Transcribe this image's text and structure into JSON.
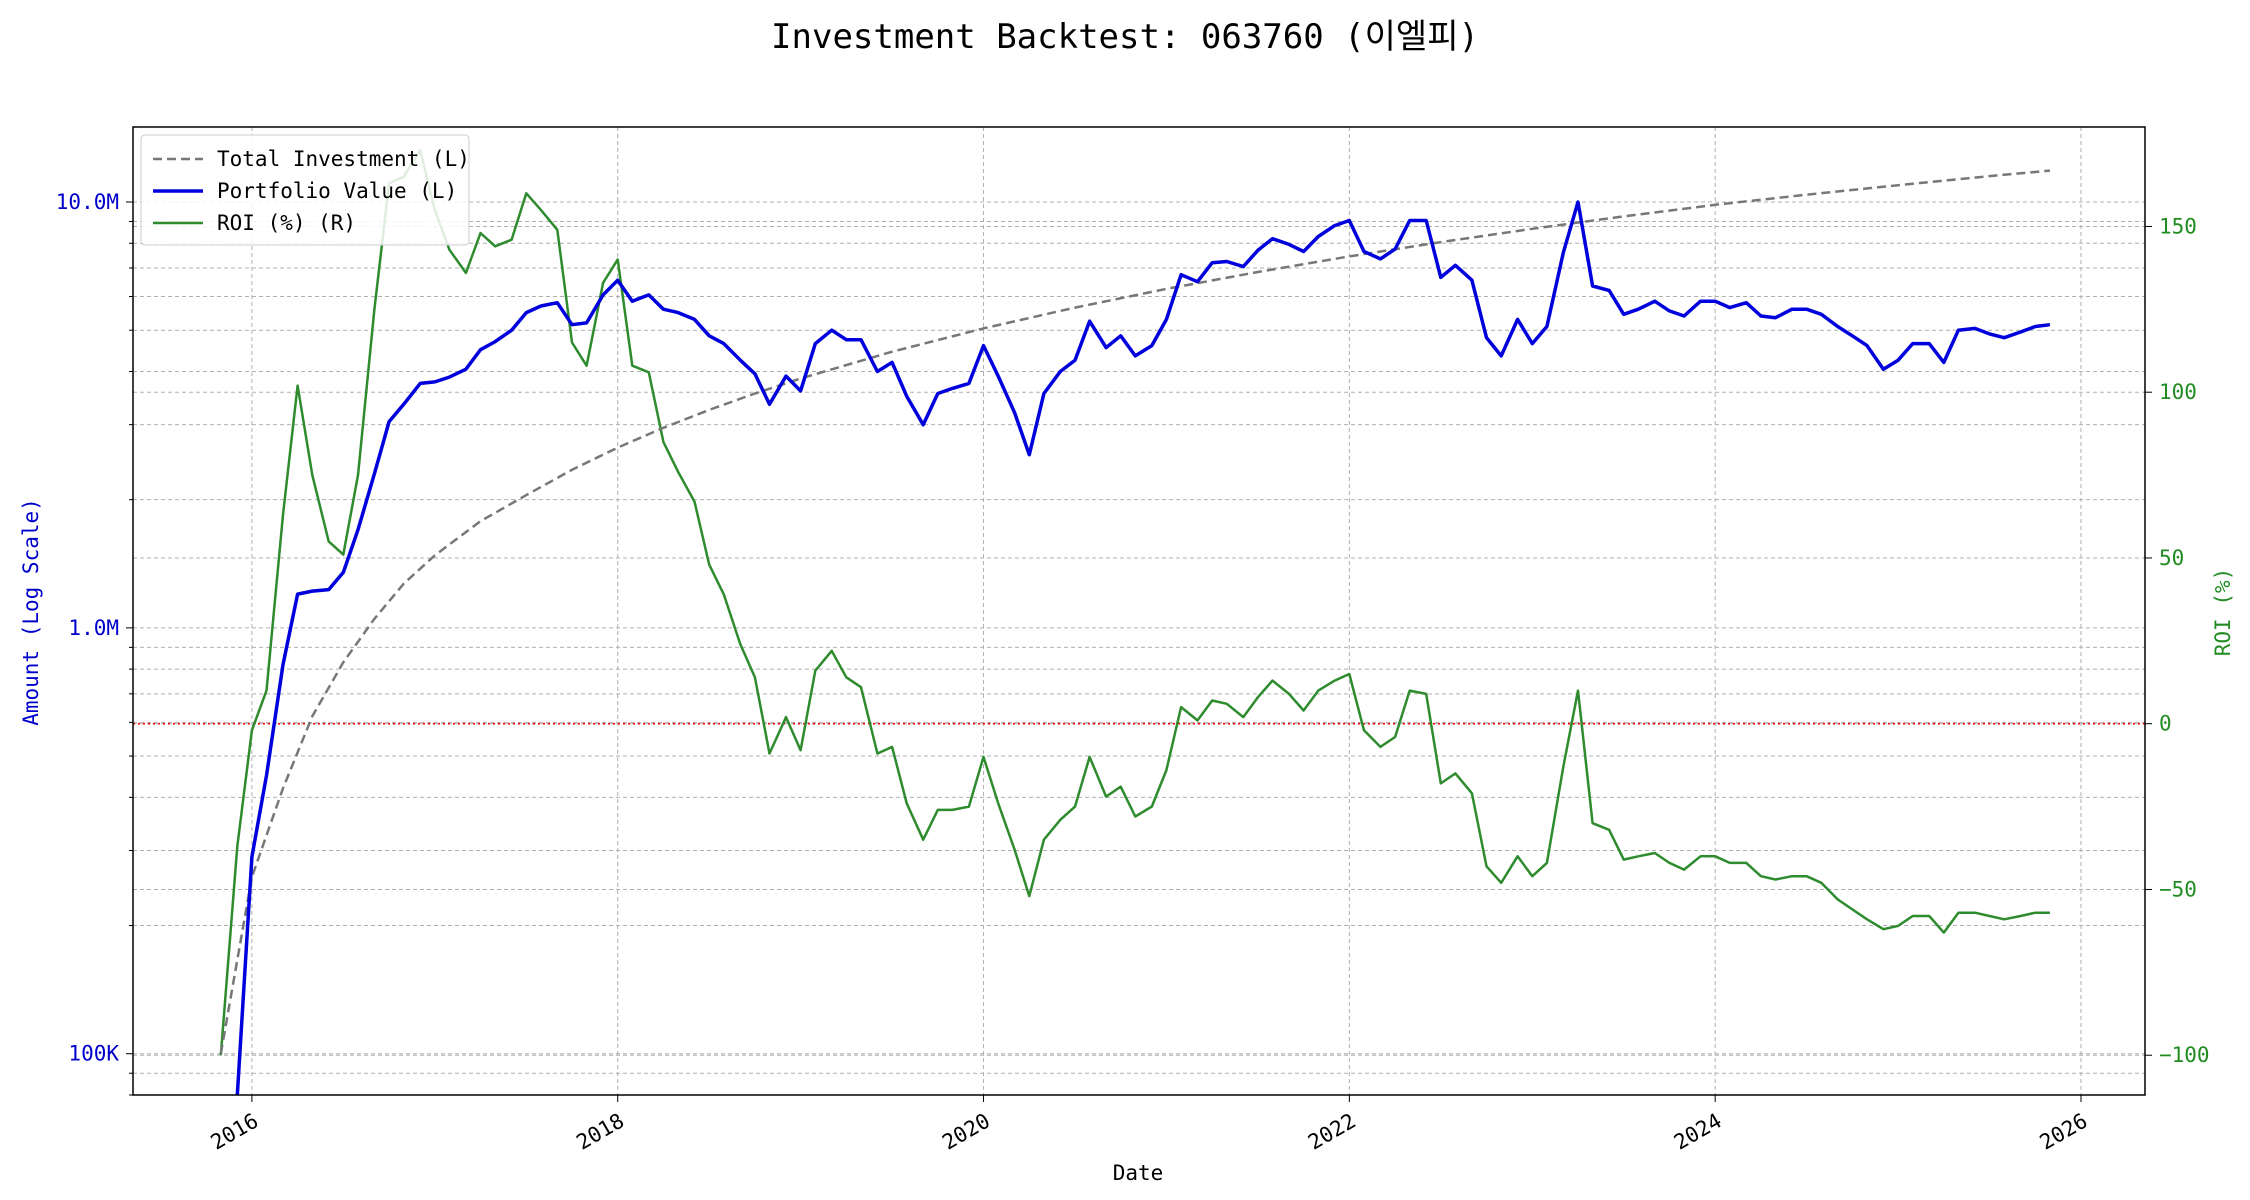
{
  "chart_data": {
    "type": "line",
    "title": "Investment Backtest: 063760 (이엘피)",
    "xlabel": "Date",
    "ylabel_left": "Amount (Log Scale)",
    "ylabel_right": "ROI (%)",
    "x_ticks": [
      "2016",
      "2018",
      "2020",
      "2022",
      "2024",
      "2026"
    ],
    "y_left_scale": "log",
    "y_left_lim": [
      80000,
      15000000
    ],
    "y_left_ticks": [
      {
        "value": 100000,
        "label": "100K"
      },
      {
        "value": 1000000,
        "label": "1.0M"
      },
      {
        "value": 10000000,
        "label": "10.0M"
      }
    ],
    "y_right_lim": [
      -112,
      180
    ],
    "y_right_ticks": [
      {
        "value": -100,
        "label": "−100"
      },
      {
        "value": -50,
        "label": "−50"
      },
      {
        "value": 0,
        "label": "0"
      },
      {
        "value": 50,
        "label": "50"
      },
      {
        "value": 100,
        "label": "100"
      },
      {
        "value": 150,
        "label": "150"
      }
    ],
    "x_lim": [
      2015.35,
      2026.35
    ],
    "grid": true,
    "legend_position": "top-left",
    "reference_line": {
      "axis": "right",
      "value": 0,
      "color": "#ff0000",
      "style": "dotted"
    },
    "colors": {
      "total_investment": "#777777",
      "portfolio": "#0000dd",
      "roi": "#2e8b2e",
      "left_axis": "#0000cc",
      "right_axis": "#228b22"
    },
    "series": [
      {
        "name": "Total Investment (L)",
        "axis": "left",
        "style": "dashed",
        "x": [
          2015.83,
          2016.0,
          2016.17,
          2016.33,
          2016.5,
          2016.67,
          2016.83,
          2017.0,
          2017.25,
          2017.5,
          2017.75,
          2018.0,
          2018.25,
          2018.5,
          2018.75,
          2019.0,
          2019.5,
          2020.0,
          2020.5,
          2021.0,
          2021.5,
          2022.0,
          2022.5,
          2023.0,
          2023.5,
          2024.0,
          2024.5,
          2025.0,
          2025.5,
          2025.83
        ],
        "values": [
          100000,
          260000,
          420000,
          620000,
          830000,
          1050000,
          1270000,
          1480000,
          1780000,
          2050000,
          2350000,
          2650000,
          2950000,
          3250000,
          3550000,
          3850000,
          4450000,
          5050000,
          5650000,
          6250000,
          6850000,
          7450000,
          8050000,
          8650000,
          9250000,
          9850000,
          10400000,
          10950000,
          11500000,
          11850000
        ]
      },
      {
        "name": "Portfolio Value (L)",
        "axis": "left",
        "style": "solid",
        "x": [
          2015.92,
          2016.0,
          2016.08,
          2016.17,
          2016.25,
          2016.33,
          2016.42,
          2016.5,
          2016.58,
          2016.67,
          2016.75,
          2016.83,
          2016.92,
          2017.0,
          2017.08,
          2017.17,
          2017.25,
          2017.33,
          2017.42,
          2017.5,
          2017.58,
          2017.67,
          2017.75,
          2017.83,
          2017.92,
          2018.0,
          2018.08,
          2018.17,
          2018.25,
          2018.33,
          2018.42,
          2018.5,
          2018.58,
          2018.67,
          2018.75,
          2018.83,
          2018.92,
          2019.0,
          2019.08,
          2019.17,
          2019.25,
          2019.33,
          2019.42,
          2019.5,
          2019.58,
          2019.67,
          2019.75,
          2019.83,
          2019.92,
          2020.0,
          2020.08,
          2020.17,
          2020.25,
          2020.33,
          2020.42,
          2020.5,
          2020.58,
          2020.67,
          2020.75,
          2020.83,
          2020.92,
          2021.0,
          2021.08,
          2021.17,
          2021.25,
          2021.33,
          2021.42,
          2021.5,
          2021.58,
          2021.67,
          2021.75,
          2021.83,
          2021.92,
          2022.0,
          2022.08,
          2022.17,
          2022.25,
          2022.33,
          2022.42,
          2022.5,
          2022.58,
          2022.67,
          2022.75,
          2022.83,
          2022.92,
          2023.0,
          2023.08,
          2023.17,
          2023.25,
          2023.33,
          2023.42,
          2023.5,
          2023.58,
          2023.67,
          2023.75,
          2023.83,
          2023.92,
          2024.0,
          2024.08,
          2024.17,
          2024.25,
          2024.33,
          2024.42,
          2024.5,
          2024.58,
          2024.67,
          2024.75,
          2024.83,
          2024.92,
          2025.0,
          2025.08,
          2025.17,
          2025.25,
          2025.33,
          2025.42,
          2025.5,
          2025.58,
          2025.67,
          2025.75,
          2025.83
        ],
        "values": [
          65000,
          290000,
          450000,
          820000,
          1200000,
          1220000,
          1230000,
          1350000,
          1700000,
          2300000,
          3050000,
          3350000,
          3750000,
          3780000,
          3880000,
          4050000,
          4500000,
          4700000,
          5000000,
          5500000,
          5700000,
          5800000,
          5150000,
          5200000,
          6050000,
          6550000,
          5850000,
          6050000,
          5600000,
          5500000,
          5300000,
          4850000,
          4650000,
          4250000,
          3950000,
          3350000,
          3900000,
          3600000,
          4650000,
          5000000,
          4750000,
          4750000,
          4000000,
          4200000,
          3500000,
          3000000,
          3550000,
          3650000,
          3750000,
          4600000,
          3900000,
          3200000,
          2550000,
          3550000,
          4000000,
          4250000,
          5250000,
          4550000,
          4850000,
          4350000,
          4600000,
          5300000,
          6750000,
          6500000,
          7200000,
          7250000,
          7050000,
          7700000,
          8200000,
          7950000,
          7650000,
          8300000,
          8800000,
          9050000,
          7650000,
          7350000,
          7750000,
          9050000,
          9050000,
          6650000,
          7100000,
          6550000,
          4800000,
          4350000,
          5300000,
          4650000,
          5100000,
          7600000,
          10000000,
          6350000,
          6200000,
          5450000,
          5600000,
          5850000,
          5550000,
          5400000,
          5850000,
          5850000,
          5650000,
          5800000,
          5400000,
          5350000,
          5600000,
          5600000,
          5450000,
          5100000,
          4850000,
          4600000,
          4050000,
          4250000,
          4650000,
          4650000,
          4200000,
          5000000,
          5050000,
          4900000,
          4800000,
          4950000,
          5100000,
          5150000
        ]
      },
      {
        "name": "ROI (%) (R)",
        "axis": "right",
        "style": "solid",
        "x": [
          2015.83,
          2015.92,
          2016.0,
          2016.08,
          2016.17,
          2016.25,
          2016.33,
          2016.42,
          2016.5,
          2016.58,
          2016.67,
          2016.75,
          2016.83,
          2016.92,
          2017.0,
          2017.08,
          2017.17,
          2017.25,
          2017.33,
          2017.42,
          2017.5,
          2017.58,
          2017.67,
          2017.75,
          2017.83,
          2017.92,
          2018.0,
          2018.08,
          2018.17,
          2018.25,
          2018.33,
          2018.42,
          2018.5,
          2018.58,
          2018.67,
          2018.75,
          2018.83,
          2018.92,
          2019.0,
          2019.08,
          2019.17,
          2019.25,
          2019.33,
          2019.42,
          2019.5,
          2019.58,
          2019.67,
          2019.75,
          2019.83,
          2019.92,
          2020.0,
          2020.08,
          2020.17,
          2020.25,
          2020.33,
          2020.42,
          2020.5,
          2020.58,
          2020.67,
          2020.75,
          2020.83,
          2020.92,
          2021.0,
          2021.08,
          2021.17,
          2021.25,
          2021.33,
          2021.42,
          2021.5,
          2021.58,
          2021.67,
          2021.75,
          2021.83,
          2021.92,
          2022.0,
          2022.08,
          2022.17,
          2022.25,
          2022.33,
          2022.42,
          2022.5,
          2022.58,
          2022.67,
          2022.75,
          2022.83,
          2022.92,
          2023.0,
          2023.08,
          2023.17,
          2023.25,
          2023.33,
          2023.42,
          2023.5,
          2023.58,
          2023.67,
          2023.75,
          2023.83,
          2023.92,
          2024.0,
          2024.08,
          2024.17,
          2024.25,
          2024.33,
          2024.42,
          2024.5,
          2024.58,
          2024.67,
          2024.75,
          2024.83,
          2024.92,
          2025.0,
          2025.08,
          2025.17,
          2025.25,
          2025.33,
          2025.42,
          2025.5,
          2025.58,
          2025.67,
          2025.75,
          2025.83
        ],
        "values": [
          -100,
          -37,
          -2,
          10,
          63,
          102,
          75,
          55,
          51,
          75,
          125,
          163,
          165,
          173,
          155,
          143,
          136,
          148,
          144,
          146,
          160,
          155,
          149,
          115,
          108,
          133,
          140,
          108,
          106,
          85,
          76,
          67,
          48,
          39,
          24,
          14,
          -9,
          2,
          -8,
          16,
          22,
          14,
          11,
          -9,
          -7,
          -24,
          -35,
          -26,
          -26,
          -25,
          -10,
          -24,
          -38,
          -52,
          -35,
          -29,
          -25,
          -10,
          -22,
          -19,
          -28,
          -25,
          -14,
          5,
          1,
          7,
          6,
          2,
          8,
          13,
          9,
          4,
          10,
          13,
          15,
          -2,
          -7,
          -4,
          10,
          9,
          -18,
          -15,
          -21,
          -43,
          -48,
          -40,
          -46,
          -42,
          -13,
          10,
          -30,
          -32,
          -41,
          -40,
          -39,
          -42,
          -44,
          -40,
          -40,
          -42,
          -42,
          -46,
          -47,
          -46,
          -46,
          -48,
          -53,
          -56,
          -59,
          -62,
          -61,
          -58,
          -58,
          -63,
          -57,
          -57,
          -58,
          -59,
          -58,
          -57,
          -57
        ]
      }
    ]
  }
}
